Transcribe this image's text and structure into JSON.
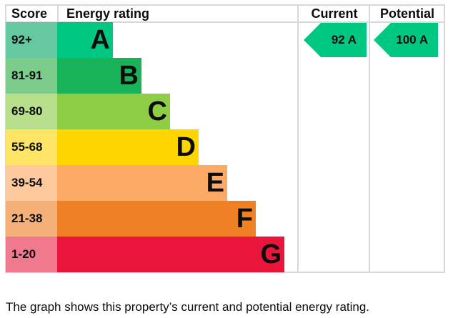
{
  "chart_data": {
    "type": "table",
    "headers": {
      "score": "Score",
      "rating": "Energy rating",
      "current": "Current",
      "potential": "Potential"
    },
    "bands": [
      {
        "letter": "A",
        "range": "92+",
        "color": "#00c781",
        "score_color": "#64c9a0"
      },
      {
        "letter": "B",
        "range": "81-91",
        "color": "#19b459",
        "score_color": "#7ccd8c"
      },
      {
        "letter": "C",
        "range": "69-80",
        "color": "#8dce46",
        "score_color": "#b8e08c"
      },
      {
        "letter": "D",
        "range": "55-68",
        "color": "#ffd500",
        "score_color": "#ffe566"
      },
      {
        "letter": "E",
        "range": "39-54",
        "color": "#fcaa65",
        "score_color": "#fdc99d"
      },
      {
        "letter": "F",
        "range": "21-38",
        "color": "#ef8023",
        "score_color": "#f5b07a"
      },
      {
        "letter": "G",
        "range": "1-20",
        "color": "#e9153b",
        "score_color": "#f0798e"
      }
    ],
    "current": {
      "value": 92,
      "band": "A",
      "label": "92  A"
    },
    "potential": {
      "value": 100,
      "band": "A",
      "label": "100  A"
    }
  },
  "caption": "The graph shows this property’s current and potential energy rating."
}
